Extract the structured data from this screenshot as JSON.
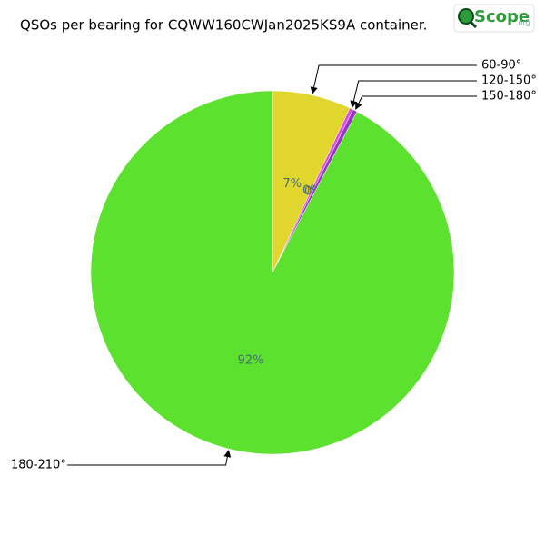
{
  "chart_data": {
    "type": "pie",
    "title": "QSOs per bearing for CQWW160CWJan2025KS9A container.",
    "logo": {
      "text": "Scope",
      "suffix": ".org"
    },
    "categories": [
      "60-90°",
      "120-150°",
      "150-180°",
      "180-210°"
    ],
    "values": [
      7,
      0.3,
      0.4,
      92.3
    ],
    "value_labels": [
      "7%",
      "0%",
      "0%",
      "92%"
    ],
    "colors": [
      "#e0d62e",
      "#d94fd9",
      "#9a33c8",
      "#5ce22e"
    ]
  }
}
